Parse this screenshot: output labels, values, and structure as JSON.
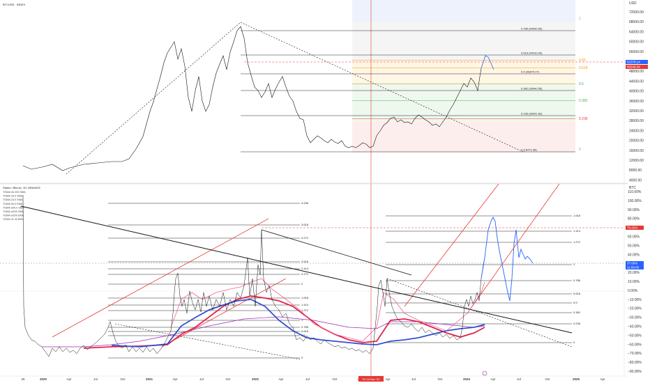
{
  "top_panel": {
    "symbol_title": "BTCUSD · INDEX",
    "currency": "USD",
    "y_ticks": [
      "72000.00",
      "68000.00",
      "64000.00",
      "60000.00",
      "56000.00",
      "52000.00",
      "48000.00",
      "44000.00",
      "40000.00",
      "36000.00",
      "32000.00",
      "28000.00",
      "24000.00",
      "20000.00",
      "16000.00",
      "12000.00",
      "8000.00",
      "4000.00"
    ],
    "price_tags": [
      {
        "text": "52378.14",
        "color": "#2962ff"
      },
      {
        "text": "50248.54",
        "color": "#e53935"
      }
    ],
    "fib_labels": [
      {
        "text": "0.786 (64990.69)",
        "color": "#222222"
      },
      {
        "text": "0.618 (54410.09)",
        "color": "#222222"
      },
      {
        "text": "0.5 (46875.97)",
        "color": "#222222"
      },
      {
        "text": "0.382 (39040.55)",
        "color": "#222222"
      },
      {
        "text": "0.236 (30341.62)",
        "color": "#222222"
      },
      {
        "text": "0 (15471.58)",
        "color": "#222222"
      }
    ],
    "right_fib": [
      {
        "text": "1",
        "color": "#9e9e9e"
      },
      {
        "text": "0.65",
        "color": "#ff9800"
      },
      {
        "text": "0.618",
        "color": "#ff9800"
      },
      {
        "text": "0.5",
        "color": "#4caf50"
      },
      {
        "text": "0.382",
        "color": "#4caf50"
      },
      {
        "text": "0.236",
        "color": "#e53935"
      },
      {
        "text": "0",
        "color": "#9e9e9e"
      }
    ]
  },
  "bottom_panel": {
    "title": "Starks / Bitcoin, 1D, BINANCE",
    "legend": [
      "TGMA 4h 200 SMA",
      "TGMA 23.0 SMA",
      "TGMA 23.0 SMA",
      "TGMA 50.0 EMA",
      "TGMA 200.0 SMA",
      "TGMA w200 SMA",
      "TGMA w200 EMA",
      "TGMA 21 W EMA"
    ],
    "currency": "BTC",
    "y_ticks": [
      "110.00%",
      "100.00%",
      "90.00%",
      "80.00%",
      "70.00%",
      "60.00%",
      "50.00%",
      "40.00%",
      "30.00%",
      "20.00%",
      "10.00%",
      "0.00%",
      "−10.00%",
      "−20.00%",
      "−30.00%",
      "−40.00%",
      "−50.00%",
      "−60.00%",
      "−70.00%",
      "−80.00%",
      "−90.00%"
    ],
    "price_tags": [
      {
        "text": "70.42%",
        "color": "#e53935"
      },
      {
        "text": "37.60%",
        "color": "#2962ff"
      },
      {
        "text": "11:58:06",
        "color": "#2962ff"
      }
    ],
    "left_fib": [
      "4.236",
      "3.618",
      "3.272",
      "2.618",
      "2.414",
      "2.272",
      "2",
      "1.618",
      "1.414",
      "1.272",
      "1",
      "0.786",
      "0.618",
      "0.5",
      "0"
    ],
    "right_fib": [
      "1.618",
      "1.414",
      "1.272",
      "1",
      "0.786",
      "0.618",
      "0.5",
      "0.382",
      "0.236",
      "0"
    ]
  },
  "x_axis": {
    "labels": [
      "25",
      "2020",
      "Apr",
      "Jul",
      "Oct",
      "2021",
      "Apr",
      "Jul",
      "Oct",
      "2022",
      "Apr",
      "Jul",
      "Oct",
      "2023",
      "Apr",
      "Jul",
      "Oct",
      "2024",
      "Apr",
      "Jul",
      "Oct",
      "2025",
      "Apr"
    ],
    "highlight": "Fri 04 Nov '22"
  },
  "colors": {
    "price": "#111111",
    "red_line": "#e53935",
    "blue_projection": "#2962ff",
    "ma_red": "#e0244c",
    "ma_blue": "#3050d0",
    "ma_purple": "#9c27b0",
    "ma_pink": "#f06292",
    "fib_blue_zone": "#eef2fd",
    "fib_grey_zone": "#f5f5f5",
    "fib_orange_zone": "#fff6e6",
    "fib_green_zone": "#eef8ee",
    "fib_red_zone": "#fdeeee"
  }
}
